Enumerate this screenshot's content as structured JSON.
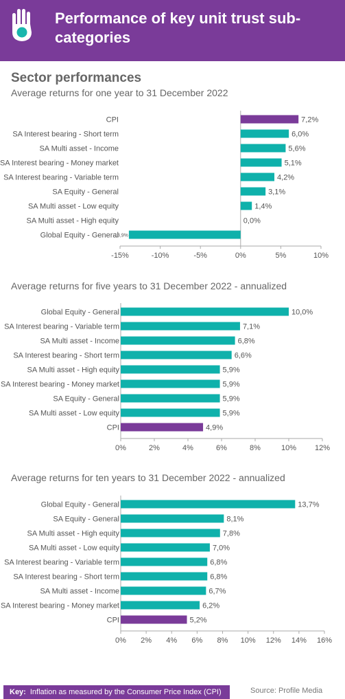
{
  "header": {
    "title": "Performance of key unit trust sub-categories"
  },
  "section_title": "Sector performances",
  "colors": {
    "header": "#7a3b99",
    "cpi_bar": "#7a3b99",
    "bar": "#0fb1ab",
    "axis": "#aaaaaa"
  },
  "chart_data": [
    {
      "type": "bar",
      "orientation": "horizontal",
      "title": "Average returns for one year to 31 December 2022",
      "categories": [
        "CPI",
        "SA Interest bearing - Short term",
        "SA Multi asset - Income",
        "SA Interest bearing - Money market",
        "SA Interest bearing - Variable term",
        "SA Equity - General",
        "SA Multi asset - Low equity",
        "SA Multi asset - High equity",
        "Global Equity - General"
      ],
      "values": [
        7.2,
        6.0,
        5.6,
        5.1,
        4.2,
        3.1,
        1.4,
        0.0,
        -13.9
      ],
      "value_labels": [
        "7,2%",
        "6,0%",
        "5,6%",
        "5,1%",
        "4,2%",
        "3,1%",
        "1,4%",
        "0,0%",
        "-13,9%"
      ],
      "highlight": "CPI",
      "xlim": [
        -15,
        10
      ],
      "xticks": [
        -15,
        -10,
        -5,
        0,
        5,
        10
      ],
      "xtick_labels": [
        "-15%",
        "-10%",
        "-5%",
        "0%",
        "5%",
        "10%"
      ]
    },
    {
      "type": "bar",
      "orientation": "horizontal",
      "title": "Average returns for five years to 31 December 2022 - annualized",
      "categories": [
        "Global Equity - General",
        "SA Interest bearing - Variable term",
        "SA Multi asset - Income",
        "SA Interest bearing - Short term",
        "SA Multi asset - High equity",
        "SA Interest bearing - Money market",
        "SA Equity - General",
        "SA Multi asset - Low equity",
        "CPI"
      ],
      "values": [
        10.0,
        7.1,
        6.8,
        6.6,
        5.9,
        5.9,
        5.9,
        5.9,
        4.9
      ],
      "value_labels": [
        "10,0%",
        "7,1%",
        "6,8%",
        "6,6%",
        "5,9%",
        "5,9%",
        "5,9%",
        "5,9%",
        "4,9%"
      ],
      "highlight": "CPI",
      "xlim": [
        0,
        12
      ],
      "xticks": [
        0,
        2,
        4,
        6,
        8,
        10,
        12
      ],
      "xtick_labels": [
        "0%",
        "2%",
        "4%",
        "6%",
        "8%",
        "10%",
        "12%"
      ]
    },
    {
      "type": "bar",
      "orientation": "horizontal",
      "title": "Average returns for ten years to 31 December 2022 - annualized",
      "categories": [
        "Global Equity - General",
        "SA Equity - General",
        "SA Multi asset - High equity",
        "SA Multi asset - Low equity",
        "SA Interest bearing - Variable term",
        "SA Interest bearing - Short term",
        "SA Multi asset - Income",
        "SA Interest bearing - Money market",
        "CPI"
      ],
      "values": [
        13.7,
        8.1,
        7.8,
        7.0,
        6.8,
        6.8,
        6.7,
        6.2,
        5.2
      ],
      "value_labels": [
        "13,7%",
        "8,1%",
        "7,8%",
        "7,0%",
        "6,8%",
        "6,8%",
        "6,7%",
        "6,2%",
        "5,2%"
      ],
      "highlight": "CPI",
      "xlim": [
        0,
        16
      ],
      "xticks": [
        0,
        2,
        4,
        6,
        8,
        10,
        12,
        14,
        16
      ],
      "xtick_labels": [
        "0%",
        "2%",
        "4%",
        "6%",
        "8%",
        "10%",
        "12%",
        "14%",
        "16%"
      ]
    }
  ],
  "footer": {
    "key_label": "Key:",
    "key_text": "Inflation as measured by the Consumer Price Index (CPI)",
    "source": "Source: Profile Media"
  }
}
